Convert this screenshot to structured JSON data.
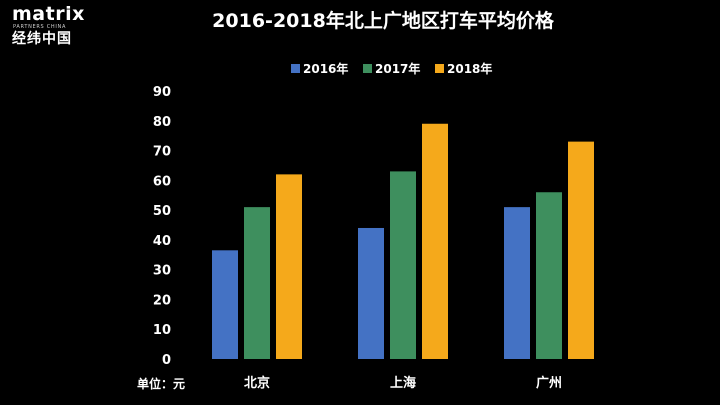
{
  "logo": {
    "wordmark": "matrix",
    "subtitle": "PARTNERS CHINA",
    "chinese": "经纬中国"
  },
  "chart_data": {
    "type": "bar",
    "title": "2016-2018年北上广地区打车平均价格",
    "categories": [
      "北京",
      "上海",
      "广州"
    ],
    "series": [
      {
        "name": "2016年",
        "color": "#4472C4",
        "values": [
          36.5,
          44,
          51
        ]
      },
      {
        "name": "2017年",
        "color": "#3E8F5E",
        "values": [
          51,
          63,
          56
        ]
      },
      {
        "name": "2018年",
        "color": "#F5A91B",
        "values": [
          62,
          79,
          73
        ]
      }
    ],
    "ylim": [
      0,
      90
    ],
    "yticks": [
      "0",
      "10",
      "20",
      "30",
      "40",
      "50",
      "60",
      "70",
      "80",
      "90"
    ],
    "unit_label": "单位：元",
    "legend_position": "top-center",
    "grid": false
  }
}
